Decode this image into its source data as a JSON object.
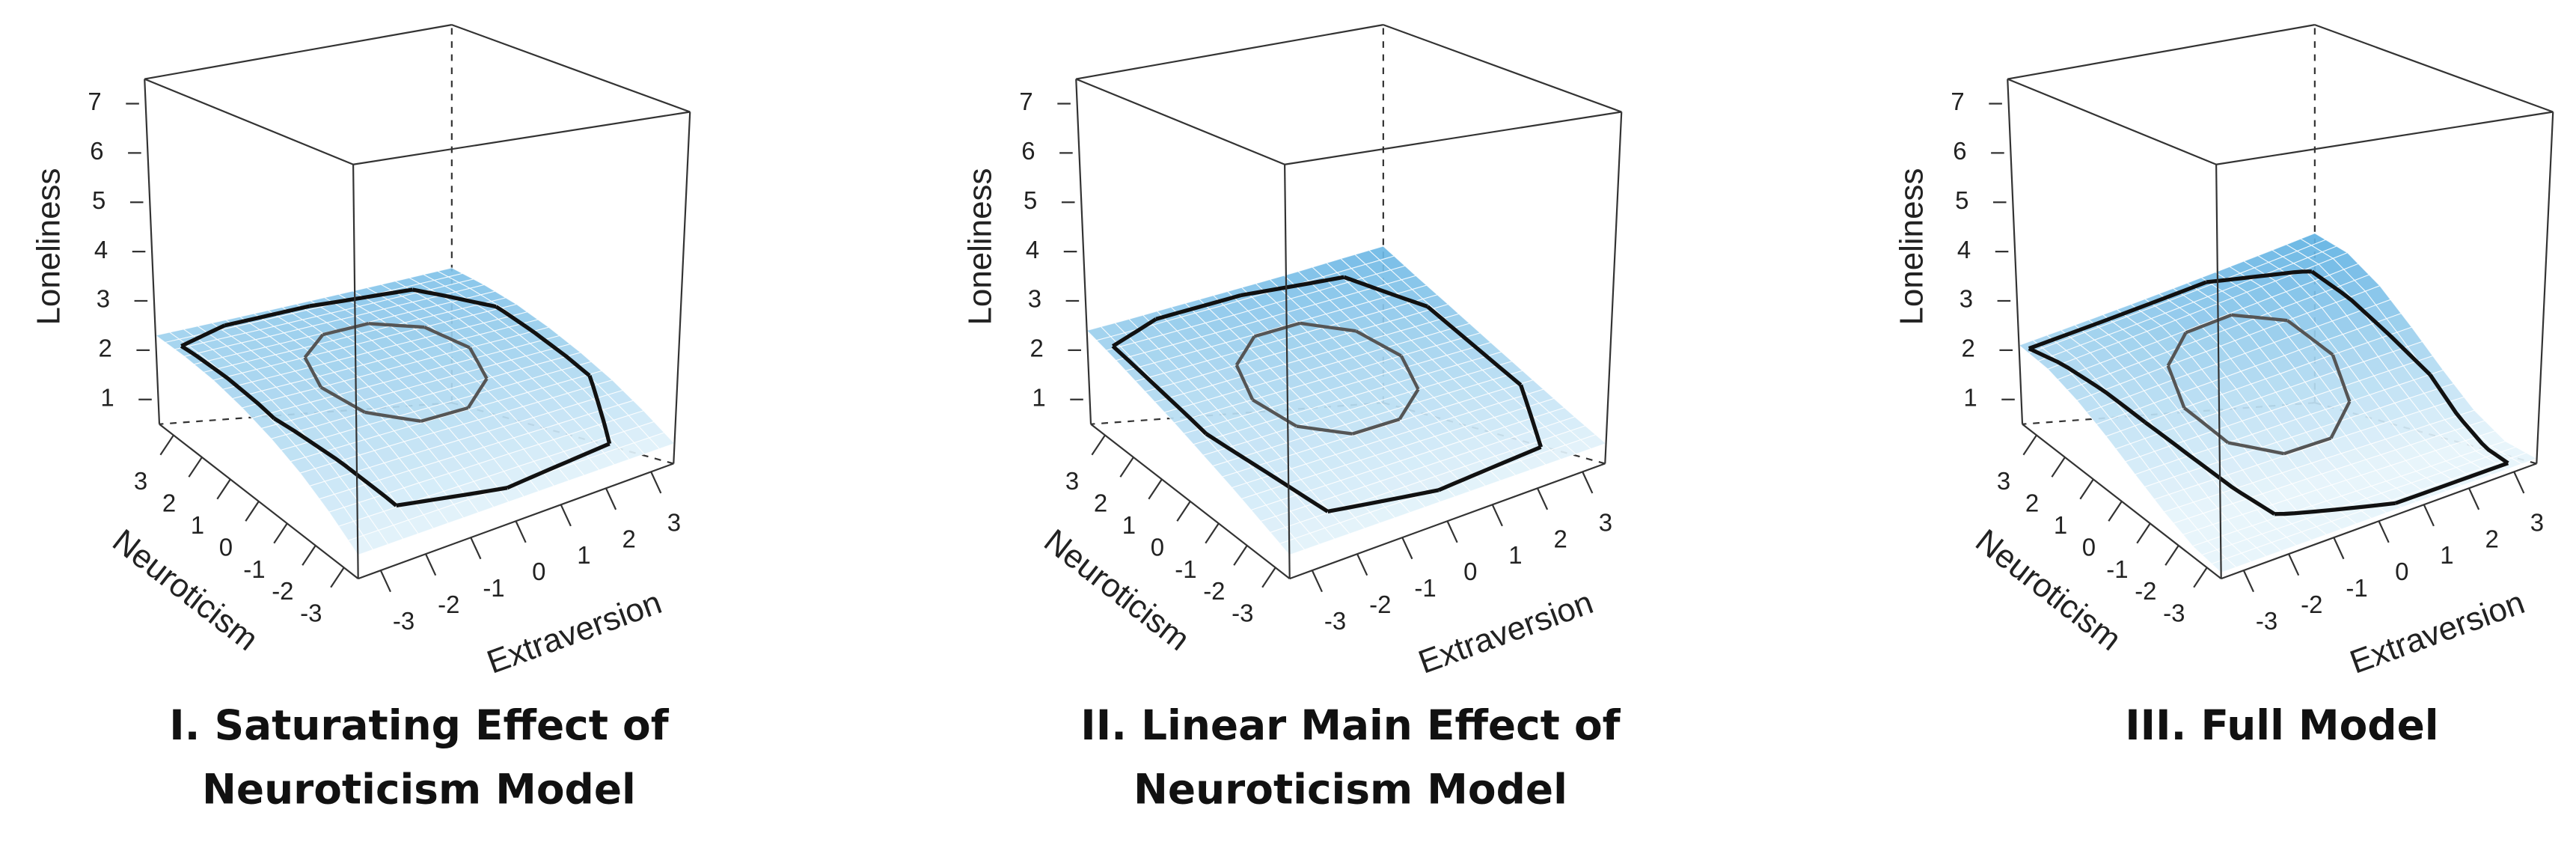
{
  "chart_data": [
    {
      "type": "surface",
      "title": [
        "I. Saturating Effect of",
        "Neuroticism Model"
      ],
      "xlabel": "Extraversion",
      "ylabel": "Neuroticism",
      "zlabel": "Loneliness",
      "xlim": [
        -3.5,
        3.5
      ],
      "ylim": [
        -3.5,
        3.5
      ],
      "zlim": [
        0.5,
        7.5
      ],
      "xticks": [
        -3,
        -2,
        -1,
        0,
        1,
        2,
        3
      ],
      "yticks": [
        -3,
        -2,
        -1,
        0,
        1,
        2,
        3
      ],
      "zticks": [
        1,
        2,
        3,
        4,
        5,
        6,
        7
      ],
      "colors": [
        "#e6f4fb",
        "#5db0e2"
      ],
      "surface": {
        "x": [
          -3.5,
          -2.5,
          -1.5,
          -0.5,
          0.5,
          1.5,
          2.5,
          3.5
        ],
        "y": [
          -3.5,
          -2.5,
          -1.5,
          -0.5,
          0.5,
          1.5,
          2.5,
          3.5
        ],
        "z": [
          [
            0.9,
            0.9,
            0.9,
            0.9,
            0.9,
            0.9,
            0.9,
            0.9
          ],
          [
            1.27,
            1.28,
            1.3,
            1.31,
            1.33,
            1.34,
            1.36,
            1.37
          ],
          [
            1.59,
            1.62,
            1.65,
            1.68,
            1.7,
            1.73,
            1.76,
            1.79
          ],
          [
            1.84,
            1.88,
            1.93,
            1.97,
            2.01,
            2.05,
            2.1,
            2.14
          ],
          [
            2.04,
            2.1,
            2.15,
            2.21,
            2.27,
            2.33,
            2.38,
            2.44
          ],
          [
            2.19,
            2.26,
            2.33,
            2.4,
            2.48,
            2.55,
            2.62,
            2.69
          ],
          [
            2.27,
            2.36,
            2.44,
            2.53,
            2.61,
            2.7,
            2.78,
            2.87
          ],
          [
            2.3,
            2.4,
            2.5,
            2.6,
            2.7,
            2.8,
            2.9,
            3.0
          ]
        ]
      },
      "outer_hull": [
        [
          -3.3,
          2.9
        ],
        [
          -3.1,
          0
        ],
        [
          -2.2,
          -2.8
        ],
        [
          0,
          -3.2
        ],
        [
          2.4,
          -3
        ],
        [
          3.2,
          -1.2
        ],
        [
          3.1,
          1.6
        ],
        [
          2.2,
          3
        ],
        [
          0,
          3.3
        ],
        [
          -2,
          3.3
        ]
      ],
      "inner_hull": [
        [
          1.7,
          0.5
        ],
        [
          1.38,
          1.5
        ],
        [
          0.53,
          2.12
        ],
        [
          -0.53,
          2.12
        ],
        [
          -1.38,
          1.5
        ],
        [
          -1.7,
          0.5
        ],
        [
          -1.38,
          -0.5
        ],
        [
          -0.53,
          -1.12
        ],
        [
          0.53,
          -1.12
        ],
        [
          1.38,
          -0.5
        ]
      ]
    },
    {
      "type": "surface",
      "title": [
        "II. Linear Main Effect of",
        "Neuroticism Model"
      ],
      "xlabel": "Extraversion",
      "ylabel": "Neuroticism",
      "zlabel": "Loneliness",
      "xlim": [
        -3.5,
        3.5
      ],
      "ylim": [
        -3.5,
        3.5
      ],
      "zlim": [
        0.5,
        7.5
      ],
      "xticks": [
        -3,
        -2,
        -1,
        0,
        1,
        2,
        3
      ],
      "yticks": [
        -3,
        -2,
        -1,
        0,
        1,
        2,
        3
      ],
      "zticks": [
        1,
        2,
        3,
        4,
        5,
        6,
        7
      ],
      "colors": [
        "#e6f4fb",
        "#5db0e2"
      ],
      "surface": {
        "x": [
          -3.5,
          -2.5,
          -1.5,
          -0.5,
          0.5,
          1.5,
          2.5,
          3.5
        ],
        "y": [
          -3.5,
          -2.5,
          -1.5,
          -0.5,
          0.5,
          1.5,
          2.5,
          3.5
        ],
        "z": [
          [
            0.9,
            0.9,
            0.9,
            0.9,
            0.9,
            0.9,
            0.9,
            0.9
          ],
          [
            1.11,
            1.13,
            1.15,
            1.17,
            1.19,
            1.21,
            1.23,
            1.25
          ],
          [
            1.33,
            1.37,
            1.41,
            1.45,
            1.49,
            1.53,
            1.57,
            1.61
          ],
          [
            1.54,
            1.6,
            1.67,
            1.73,
            1.79,
            1.85,
            1.91,
            1.97
          ],
          [
            1.76,
            1.84,
            1.92,
            2.0,
            2.08,
            2.17,
            2.25,
            2.33
          ],
          [
            1.97,
            2.07,
            2.18,
            2.28,
            2.38,
            2.48,
            2.58,
            2.69
          ],
          [
            2.19,
            2.31,
            2.43,
            2.55,
            2.68,
            2.8,
            2.92,
            3.04
          ],
          [
            2.4,
            2.54,
            2.69,
            2.83,
            2.97,
            3.11,
            3.26,
            3.4
          ]
        ]
      },
      "outer_hull": [
        [
          -3.3,
          2.9
        ],
        [
          -3.1,
          0
        ],
        [
          -2.2,
          -2.8
        ],
        [
          0,
          -3.2
        ],
        [
          2.4,
          -3
        ],
        [
          3.2,
          -1.2
        ],
        [
          3.1,
          1.6
        ],
        [
          2.2,
          3
        ],
        [
          0,
          3.3
        ],
        [
          -2,
          3.3
        ]
      ],
      "inner_hull": [
        [
          1.7,
          0.5
        ],
        [
          1.38,
          1.5
        ],
        [
          0.53,
          2.12
        ],
        [
          -0.53,
          2.12
        ],
        [
          -1.38,
          1.5
        ],
        [
          -1.7,
          0.5
        ],
        [
          -1.38,
          -0.5
        ],
        [
          -0.53,
          -1.12
        ],
        [
          0.53,
          -1.12
        ],
        [
          1.38,
          -0.5
        ]
      ]
    },
    {
      "type": "surface",
      "title": [
        "III. Full Model"
      ],
      "xlabel": "Extraversion",
      "ylabel": "Neuroticism",
      "zlabel": "Loneliness",
      "xlim": [
        -3.5,
        3.5
      ],
      "ylim": [
        -3.5,
        3.5
      ],
      "zlim": [
        0.5,
        7.5
      ],
      "xticks": [
        -3,
        -2,
        -1,
        0,
        1,
        2,
        3
      ],
      "yticks": [
        -3,
        -2,
        -1,
        0,
        1,
        2,
        3
      ],
      "zticks": [
        1,
        2,
        3,
        4,
        5,
        6,
        7
      ],
      "colors": [
        "#e6f4fb",
        "#5db0e2"
      ],
      "surface": {
        "x": [
          -3.5,
          -2.5,
          -1.5,
          -0.5,
          0.5,
          1.5,
          2.5,
          3.5
        ],
        "y": [
          -3.5,
          -2.5,
          -1.5,
          -0.5,
          0.5,
          1.5,
          2.5,
          3.5
        ],
        "z": [
          [
            0.6,
            0.6,
            0.6,
            0.6,
            0.6,
            0.6,
            0.6,
            0.6
          ],
          [
            0.68,
            0.7,
            0.71,
            0.72,
            0.73,
            0.74,
            0.76,
            0.77
          ],
          [
            0.9,
            0.94,
            0.98,
            1.03,
            1.07,
            1.11,
            1.16,
            1.2
          ],
          [
            1.19,
            1.28,
            1.36,
            1.45,
            1.54,
            1.62,
            1.71,
            1.8
          ],
          [
            1.51,
            1.64,
            1.78,
            1.91,
            2.04,
            2.18,
            2.31,
            2.44
          ],
          [
            1.8,
            1.98,
            2.16,
            2.33,
            2.51,
            2.69,
            2.86,
            3.04
          ],
          [
            2.02,
            2.23,
            2.43,
            2.64,
            2.85,
            3.06,
            3.26,
            3.47
          ],
          [
            2.1,
            2.32,
            2.54,
            2.76,
            2.98,
            3.2,
            3.42,
            3.64
          ]
        ]
      },
      "outer_hull": [
        [
          -3.4,
          3.3
        ],
        [
          -2.6,
          0.5
        ],
        [
          -1.6,
          -2.4
        ],
        [
          0.5,
          -3.3
        ],
        [
          3,
          -3.3
        ],
        [
          3.2,
          -0.5
        ],
        [
          2.6,
          2.4
        ],
        [
          0.8,
          3.3
        ]
      ],
      "inner_hull": [
        [
          1.7,
          0.5
        ],
        [
          1.38,
          1.5
        ],
        [
          0.53,
          2.12
        ],
        [
          -0.53,
          2.12
        ],
        [
          -1.38,
          1.5
        ],
        [
          -1.7,
          0.5
        ],
        [
          -1.38,
          -0.5
        ],
        [
          -0.53,
          -1.12
        ],
        [
          0.53,
          -1.12
        ],
        [
          1.38,
          -0.5
        ]
      ]
    }
  ]
}
